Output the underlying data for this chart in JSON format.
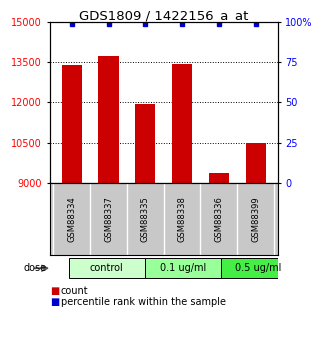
{
  "title": "GDS1809 / 1422156_a_at",
  "samples": [
    "GSM88334",
    "GSM88337",
    "GSM88335",
    "GSM88338",
    "GSM88336",
    "GSM88399"
  ],
  "bar_values": [
    13400,
    13750,
    11950,
    13450,
    9350,
    10500
  ],
  "percentile_values": [
    99,
    99,
    99,
    99,
    99,
    99
  ],
  "bar_color": "#cc0000",
  "percentile_color": "#0000cc",
  "ylim_left": [
    9000,
    15000
  ],
  "ylim_right": [
    0,
    100
  ],
  "yticks_left": [
    9000,
    10500,
    12000,
    13500,
    15000
  ],
  "yticks_right": [
    0,
    25,
    50,
    75,
    100
  ],
  "ytick_labels_left": [
    "9000",
    "10500",
    "12000",
    "13500",
    "15000"
  ],
  "ytick_labels_right": [
    "0",
    "25",
    "50",
    "75",
    "100%"
  ],
  "grid_values": [
    10500,
    12000,
    13500
  ],
  "groups": [
    {
      "label": "control",
      "indices": [
        0,
        1
      ],
      "color": "#ccffcc"
    },
    {
      "label": "0.1 ug/ml",
      "indices": [
        2,
        3
      ],
      "color": "#99ff99"
    },
    {
      "label": "0.5 ug/ml",
      "indices": [
        4,
        5
      ],
      "color": "#44ee44"
    }
  ],
  "dose_label": "dose",
  "legend_count_label": "count",
  "legend_percentile_label": "percentile rank within the sample",
  "background_color": "#ffffff",
  "plot_bg_color": "#ffffff",
  "label_area_color": "#c8c8c8",
  "title_fontsize": 9.5,
  "tick_fontsize": 7,
  "sample_fontsize": 6,
  "dose_fontsize": 7,
  "legend_fontsize": 7,
  "bar_width": 0.55
}
